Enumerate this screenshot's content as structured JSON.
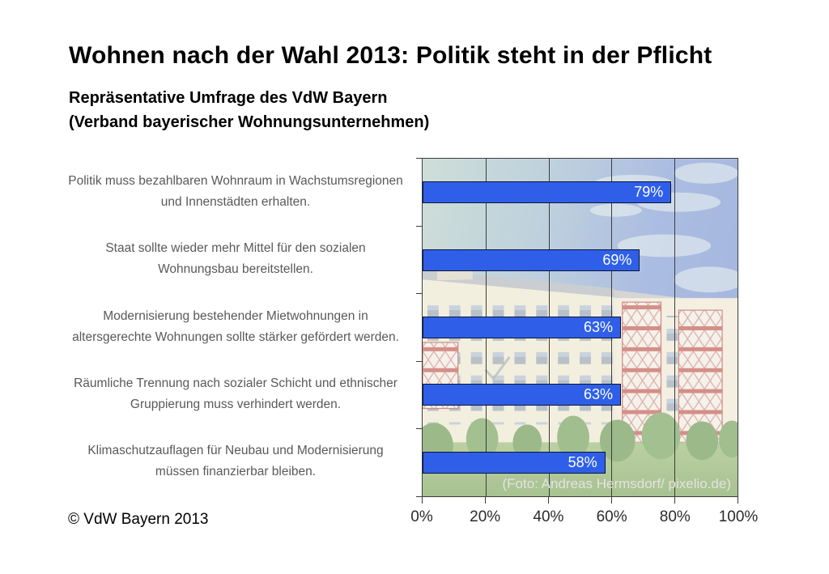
{
  "page": {
    "title": "Wohnen nach der Wahl 2013: Politik steht in der Pflicht",
    "subtitle_line1": "Repräsentative Umfrage des VdW Bayern",
    "subtitle_line2": "(Verband bayerischer Wohnungsunternehmen)",
    "copyright": "© VdW Bayern 2013",
    "photo_credit": "(Foto: Andreas Hermsdorf/ pixelio.de)"
  },
  "chart_data": {
    "type": "bar",
    "orientation": "horizontal",
    "title": "Wohnen nach der Wahl 2013: Politik steht in der Pflicht",
    "categories": [
      [
        "Politik muss bezahlbaren Wohnraum in Wachstumsregionen",
        "und Innenstädten erhalten."
      ],
      [
        "Staat sollte wieder mehr Mittel für den sozialen",
        "Wohnungsbau bereitstellen."
      ],
      [
        "Modernisierung bestehender Mietwohnungen in",
        "altersgerechte Wohnungen sollte stärker gefördert werden."
      ],
      [
        "Räumliche Trennung nach sozialer Schicht und ethnischer",
        "Gruppierung muss verhindert werden."
      ],
      [
        "Klimaschutzauflagen für Neubau und Modernisierung",
        "müssen finanzierbar bleiben."
      ]
    ],
    "values": [
      79,
      69,
      63,
      63,
      58
    ],
    "value_labels": [
      "79%",
      "69%",
      "63%",
      "63%",
      "58%"
    ],
    "xlim": [
      0,
      100
    ],
    "xticks": [
      0,
      20,
      40,
      60,
      80,
      100
    ],
    "xtick_labels": [
      "0%",
      "20%",
      "40%",
      "60%",
      "80%",
      "100%"
    ],
    "bar_color": "#2f5fe8",
    "bar_border_color": "#0d1638",
    "gridline_color": "#3c3c3c",
    "gridlines": "vertical every 20%",
    "legend": "none",
    "plot_background": "washed-out photo of an apartment building with balconies, trees and lawn under a blue sky"
  }
}
